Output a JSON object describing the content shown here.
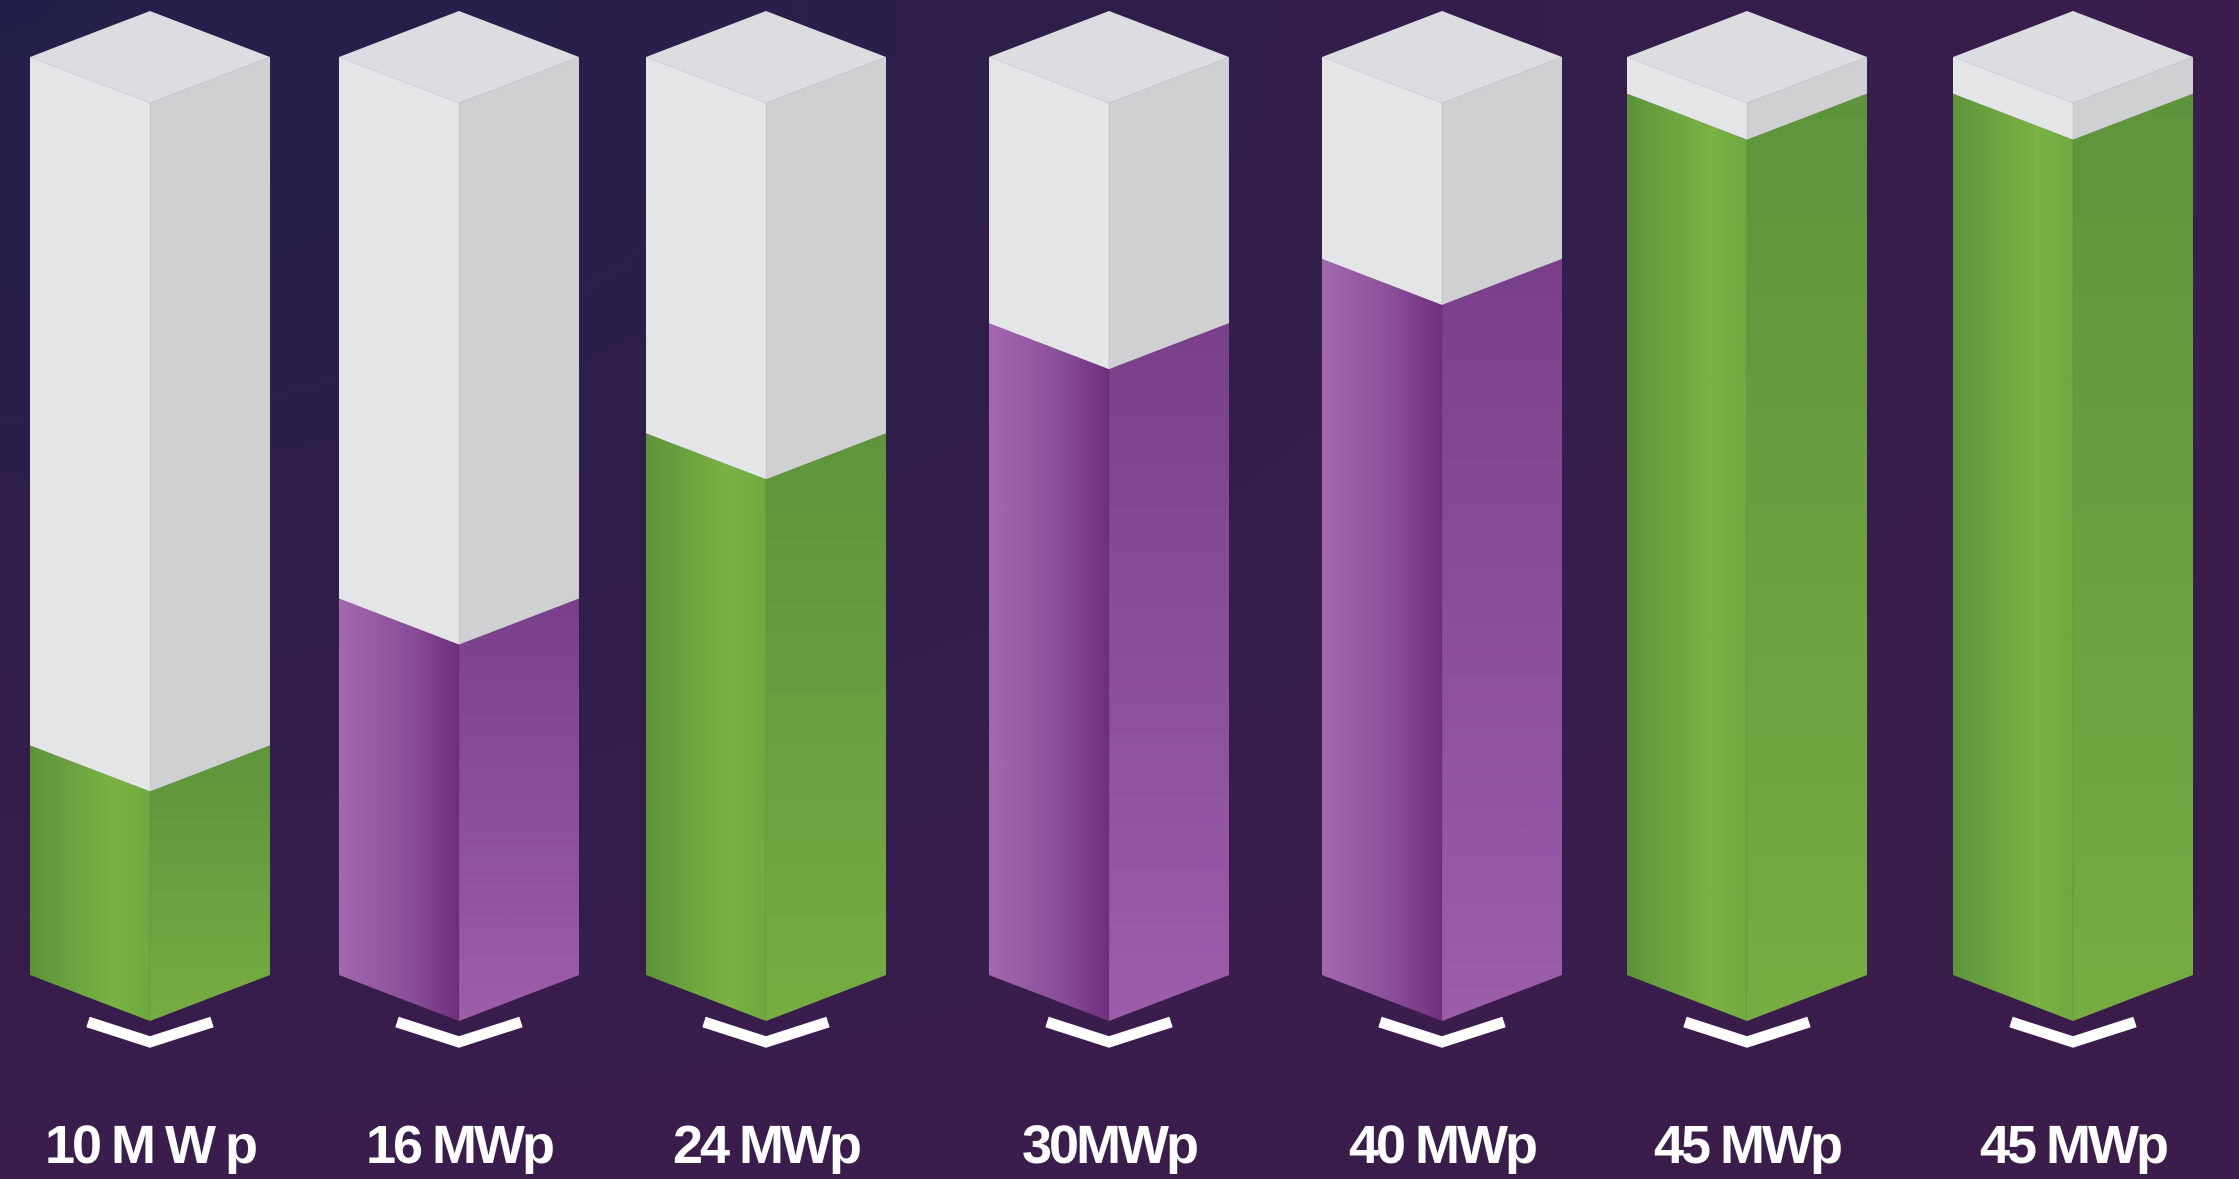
{
  "chart_data": {
    "type": "bar",
    "categories": [
      "10 M W p",
      "16 MWp",
      "24 MWp",
      "30MWp",
      "40 MWp",
      "45 MWp",
      "45 MWp"
    ],
    "values": [
      25,
      41,
      59,
      71,
      78,
      96,
      96
    ],
    "bar_colors": [
      "green",
      "purple",
      "green",
      "purple",
      "purple",
      "green",
      "green"
    ],
    "ylim": [
      0,
      100
    ],
    "colors": {
      "green_front": "#7ab343",
      "green_side": "#639a3d",
      "purple_front": "#9a5aa6",
      "purple_side": "#7a3f8a",
      "empty_front": "#e4e5e7",
      "empty_side": "#cfd0d2",
      "background": "#3a1d4c",
      "label": "#ffffff"
    }
  }
}
